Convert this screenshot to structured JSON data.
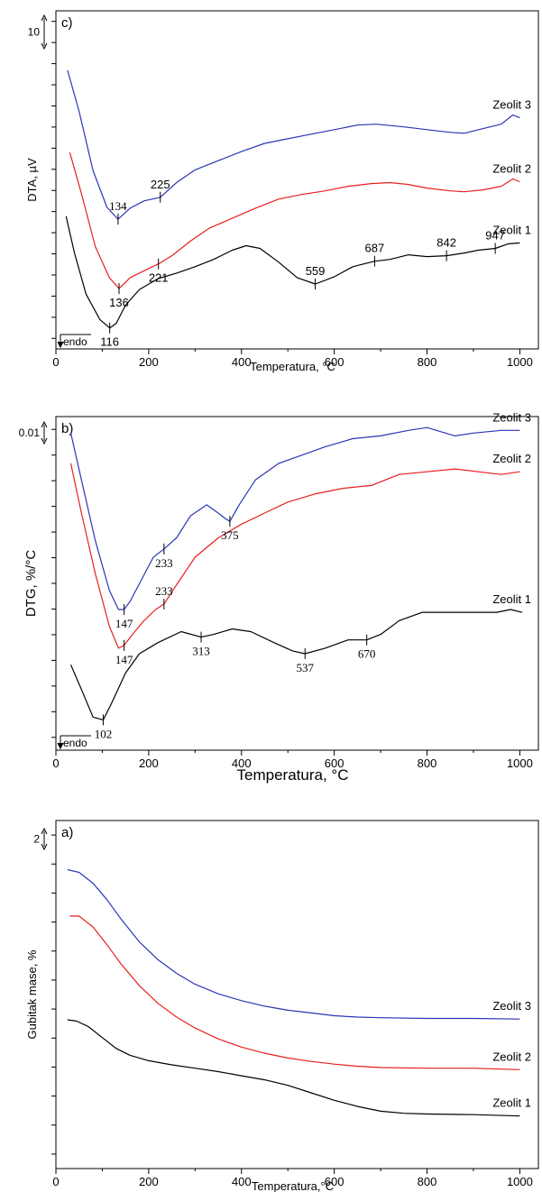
{
  "colors": {
    "zeolit1": "#000000",
    "zeolit2": "#e8201e",
    "zeolit3": "#2b36b5"
  },
  "chart_data": [
    {
      "panel": "c",
      "type": "line",
      "panel_label": "c)",
      "xlabel": "Temperatura, °C",
      "ylabel": "DTA, µV",
      "xlim": [
        0,
        1040
      ],
      "xticks": [
        0,
        200,
        400,
        600,
        800,
        1000
      ],
      "scale_bar": "10",
      "endo_label": "endo",
      "series": [
        {
          "name": "Zeolit 3",
          "color_key": "zeolit3",
          "points": [
            [
              25,
              26.5
            ],
            [
              50,
              22
            ],
            [
              80,
              15.5
            ],
            [
              110,
              11.5
            ],
            [
              134,
              10.2
            ],
            [
              160,
              11.4
            ],
            [
              190,
              12.2
            ],
            [
              225,
              12.6
            ],
            [
              260,
              14.2
            ],
            [
              300,
              15.6
            ],
            [
              350,
              16.6
            ],
            [
              400,
              17.6
            ],
            [
              450,
              18.5
            ],
            [
              500,
              19
            ],
            [
              550,
              19.5
            ],
            [
              600,
              20
            ],
            [
              650,
              20.5
            ],
            [
              690,
              20.6
            ],
            [
              750,
              20.3
            ],
            [
              800,
              20
            ],
            [
              850,
              19.7
            ],
            [
              880,
              19.6
            ],
            [
              920,
              20.1
            ],
            [
              960,
              20.6
            ],
            [
              985,
              21.6
            ],
            [
              1000,
              21.3
            ]
          ]
        },
        {
          "name": "Zeolit 2",
          "color_key": "zeolit2",
          "points": [
            [
              30,
              17.5
            ],
            [
              55,
              13
            ],
            [
              85,
              7.2
            ],
            [
              115,
              3.8
            ],
            [
              136,
              2.6
            ],
            [
              160,
              3.8
            ],
            [
              200,
              4.8
            ],
            [
              221,
              5.3
            ],
            [
              250,
              6.2
            ],
            [
              290,
              7.8
            ],
            [
              330,
              9.2
            ],
            [
              380,
              10.3
            ],
            [
              430,
              11.4
            ],
            [
              480,
              12.4
            ],
            [
              530,
              12.9
            ],
            [
              580,
              13.3
            ],
            [
              630,
              13.8
            ],
            [
              680,
              14.1
            ],
            [
              720,
              14.2
            ],
            [
              760,
              14
            ],
            [
              800,
              13.6
            ],
            [
              850,
              13.3
            ],
            [
              880,
              13.2
            ],
            [
              920,
              13.4
            ],
            [
              960,
              13.8
            ],
            [
              985,
              14.6
            ],
            [
              1000,
              14.3
            ]
          ]
        },
        {
          "name": "Zeolit 1",
          "color_key": "zeolit1",
          "points": [
            [
              22,
              10.5
            ],
            [
              40,
              6.5
            ],
            [
              65,
              2
            ],
            [
              95,
              -0.8
            ],
            [
              116,
              -1.7
            ],
            [
              130,
              -1.2
            ],
            [
              150,
              0.8
            ],
            [
              180,
              2.5
            ],
            [
              220,
              3.7
            ],
            [
              260,
              4.3
            ],
            [
              300,
              5
            ],
            [
              340,
              5.8
            ],
            [
              380,
              6.8
            ],
            [
              410,
              7.3
            ],
            [
              440,
              7
            ],
            [
              480,
              5.5
            ],
            [
              520,
              3.8
            ],
            [
              559,
              3.1
            ],
            [
              600,
              3.9
            ],
            [
              640,
              5
            ],
            [
              687,
              5.6
            ],
            [
              720,
              5.8
            ],
            [
              760,
              6.3
            ],
            [
              800,
              6.1
            ],
            [
              842,
              6.2
            ],
            [
              880,
              6.5
            ],
            [
              910,
              6.8
            ],
            [
              947,
              7
            ],
            [
              975,
              7.5
            ],
            [
              1000,
              7.6
            ]
          ]
        }
      ],
      "peak_labels": [
        {
          "text": "134",
          "x": 134,
          "y": 10.2,
          "dy": -1,
          "font": "serif"
        },
        {
          "text": "225",
          "x": 225,
          "y": 12.6,
          "dy": -1,
          "font": "sans"
        },
        {
          "text": "136",
          "x": 136,
          "y": 2.6,
          "dy": 1,
          "font": "sans"
        },
        {
          "text": "221",
          "x": 221,
          "y": 5.3,
          "dy": 1,
          "font": "sans"
        },
        {
          "text": "116",
          "x": 116,
          "y": -1.7,
          "dy": 1,
          "font": "sans"
        },
        {
          "text": "559",
          "x": 559,
          "y": 3.1,
          "dy": -1,
          "font": "sans"
        },
        {
          "text": "687",
          "x": 687,
          "y": 5.6,
          "dy": -1,
          "font": "sans"
        },
        {
          "text": "842",
          "x": 842,
          "y": 6.2,
          "dy": -1,
          "font": "sans"
        },
        {
          "text": "947",
          "x": 947,
          "y": 7,
          "dy": -1,
          "font": "sans"
        }
      ]
    },
    {
      "panel": "b",
      "type": "line",
      "panel_label": "b)",
      "xlabel": "Temperatura, °C",
      "ylabel": "DTG, %/°C",
      "xlim": [
        0,
        1040
      ],
      "xticks": [
        0,
        200,
        400,
        600,
        800,
        1000
      ],
      "scale_bar": "0.01",
      "endo_label": "endo",
      "series": [
        {
          "name": "Zeolit 3",
          "color_key": "zeolit3",
          "points": [
            [
              32,
              0.1
            ],
            [
              55,
              0.083
            ],
            [
              85,
              0.061
            ],
            [
              115,
              0.043
            ],
            [
              135,
              0.036
            ],
            [
              147,
              0.036
            ],
            [
              160,
              0.039
            ],
            [
              185,
              0.047
            ],
            [
              210,
              0.055
            ],
            [
              233,
              0.058
            ],
            [
              260,
              0.062
            ],
            [
              290,
              0.07
            ],
            [
              325,
              0.074
            ],
            [
              350,
              0.071
            ],
            [
              365,
              0.069
            ],
            [
              375,
              0.068
            ],
            [
              395,
              0.074
            ],
            [
              430,
              0.083
            ],
            [
              480,
              0.089
            ],
            [
              530,
              0.092
            ],
            [
              580,
              0.095
            ],
            [
              640,
              0.098
            ],
            [
              700,
              0.099
            ],
            [
              760,
              0.101
            ],
            [
              800,
              0.102
            ],
            [
              860,
              0.099
            ],
            [
              900,
              0.1
            ],
            [
              960,
              0.101
            ],
            [
              1000,
              0.101
            ]
          ]
        },
        {
          "name": "Zeolit 2",
          "color_key": "zeolit2",
          "points": [
            [
              32,
              0.089
            ],
            [
              55,
              0.071
            ],
            [
              85,
              0.049
            ],
            [
              115,
              0.03
            ],
            [
              135,
              0.022
            ],
            [
              147,
              0.023
            ],
            [
              165,
              0.027
            ],
            [
              190,
              0.032
            ],
            [
              215,
              0.036
            ],
            [
              233,
              0.038
            ],
            [
              260,
              0.045
            ],
            [
              300,
              0.055
            ],
            [
              350,
              0.062
            ],
            [
              400,
              0.067
            ],
            [
              450,
              0.071
            ],
            [
              500,
              0.075
            ],
            [
              560,
              0.078
            ],
            [
              620,
              0.08
            ],
            [
              680,
              0.081
            ],
            [
              740,
              0.085
            ],
            [
              800,
              0.086
            ],
            [
              860,
              0.087
            ],
            [
              910,
              0.086
            ],
            [
              960,
              0.085
            ],
            [
              1000,
              0.086
            ]
          ]
        },
        {
          "name": "Zeolit 1",
          "color_key": "zeolit1",
          "points": [
            [
              32,
              0.016
            ],
            [
              55,
              0.007
            ],
            [
              80,
              -0.003
            ],
            [
              102,
              -0.004
            ],
            [
              120,
              0.002
            ],
            [
              150,
              0.013
            ],
            [
              180,
              0.02
            ],
            [
              220,
              0.024
            ],
            [
              270,
              0.028
            ],
            [
              313,
              0.026
            ],
            [
              340,
              0.027
            ],
            [
              380,
              0.029
            ],
            [
              420,
              0.028
            ],
            [
              470,
              0.024
            ],
            [
              510,
              0.021
            ],
            [
              537,
              0.02
            ],
            [
              580,
              0.022
            ],
            [
              630,
              0.025
            ],
            [
              670,
              0.025
            ],
            [
              700,
              0.027
            ],
            [
              740,
              0.032
            ],
            [
              790,
              0.035
            ],
            [
              850,
              0.035
            ],
            [
              900,
              0.035
            ],
            [
              950,
              0.035
            ],
            [
              980,
              0.036
            ],
            [
              1005,
              0.035
            ]
          ]
        }
      ],
      "peak_labels": [
        {
          "text": "147",
          "x": 147,
          "y": 0.036,
          "dy": 1,
          "font": "serif"
        },
        {
          "text": "233",
          "x": 233,
          "y": 0.058,
          "dy": 1,
          "font": "serif"
        },
        {
          "text": "375",
          "x": 375,
          "y": 0.068,
          "dy": 1,
          "font": "serif"
        },
        {
          "text": "147",
          "x": 147,
          "y": 0.023,
          "dy": 1,
          "font": "serif"
        },
        {
          "text": "233",
          "x": 233,
          "y": 0.038,
          "dy": -1,
          "font": "serif"
        },
        {
          "text": "102",
          "x": 102,
          "y": -0.004,
          "dy": 1,
          "font": "serif"
        },
        {
          "text": "313",
          "x": 313,
          "y": 0.026,
          "dy": 1,
          "font": "serif"
        },
        {
          "text": "537",
          "x": 537,
          "y": 0.02,
          "dy": 1,
          "font": "serif"
        },
        {
          "text": "670",
          "x": 670,
          "y": 0.025,
          "dy": 1,
          "font": "serif"
        }
      ]
    },
    {
      "panel": "a",
      "type": "line",
      "panel_label": "a)",
      "xlabel": "Temperatura,°C",
      "ylabel": "Gubitak mase, %",
      "xlim": [
        0,
        1040
      ],
      "xticks": [
        0,
        200,
        400,
        600,
        800,
        1000
      ],
      "scale_bar": "2",
      "endo_label": "",
      "series": [
        {
          "name": "Zeolit 3",
          "color_key": "zeolit3",
          "points": [
            [
              25,
              25.4
            ],
            [
              50,
              25.2
            ],
            [
              80,
              24.4
            ],
            [
              110,
              23.2
            ],
            [
              140,
              21.8
            ],
            [
              180,
              20.1
            ],
            [
              220,
              18.8
            ],
            [
              260,
              17.8
            ],
            [
              300,
              17
            ],
            [
              350,
              16.3
            ],
            [
              400,
              15.8
            ],
            [
              450,
              15.4
            ],
            [
              500,
              15.1
            ],
            [
              550,
              14.9
            ],
            [
              600,
              14.7
            ],
            [
              650,
              14.6
            ],
            [
              700,
              14.55
            ],
            [
              800,
              14.5
            ],
            [
              900,
              14.5
            ],
            [
              1000,
              14.45
            ]
          ]
        },
        {
          "name": "Zeolit 2",
          "color_key": "zeolit2",
          "points": [
            [
              30,
              22
            ],
            [
              50,
              22
            ],
            [
              80,
              21.2
            ],
            [
              110,
              19.9
            ],
            [
              140,
              18.5
            ],
            [
              180,
              16.9
            ],
            [
              220,
              15.6
            ],
            [
              260,
              14.6
            ],
            [
              300,
              13.8
            ],
            [
              350,
              13
            ],
            [
              400,
              12.4
            ],
            [
              450,
              11.95
            ],
            [
              500,
              11.6
            ],
            [
              550,
              11.35
            ],
            [
              600,
              11.15
            ],
            [
              650,
              11
            ],
            [
              700,
              10.9
            ],
            [
              800,
              10.85
            ],
            [
              900,
              10.85
            ],
            [
              1000,
              10.75
            ]
          ]
        },
        {
          "name": "Zeolit 1",
          "color_key": "zeolit1",
          "points": [
            [
              25,
              14.4
            ],
            [
              45,
              14.3
            ],
            [
              70,
              13.9
            ],
            [
              100,
              13.1
            ],
            [
              130,
              12.3
            ],
            [
              160,
              11.8
            ],
            [
              200,
              11.4
            ],
            [
              250,
              11.1
            ],
            [
              300,
              10.85
            ],
            [
              350,
              10.6
            ],
            [
              400,
              10.3
            ],
            [
              450,
              10
            ],
            [
              500,
              9.6
            ],
            [
              550,
              9.05
            ],
            [
              600,
              8.5
            ],
            [
              650,
              8.05
            ],
            [
              700,
              7.7
            ],
            [
              750,
              7.55
            ],
            [
              800,
              7.5
            ],
            [
              900,
              7.45
            ],
            [
              1000,
              7.35
            ]
          ]
        }
      ],
      "peak_labels": []
    }
  ]
}
